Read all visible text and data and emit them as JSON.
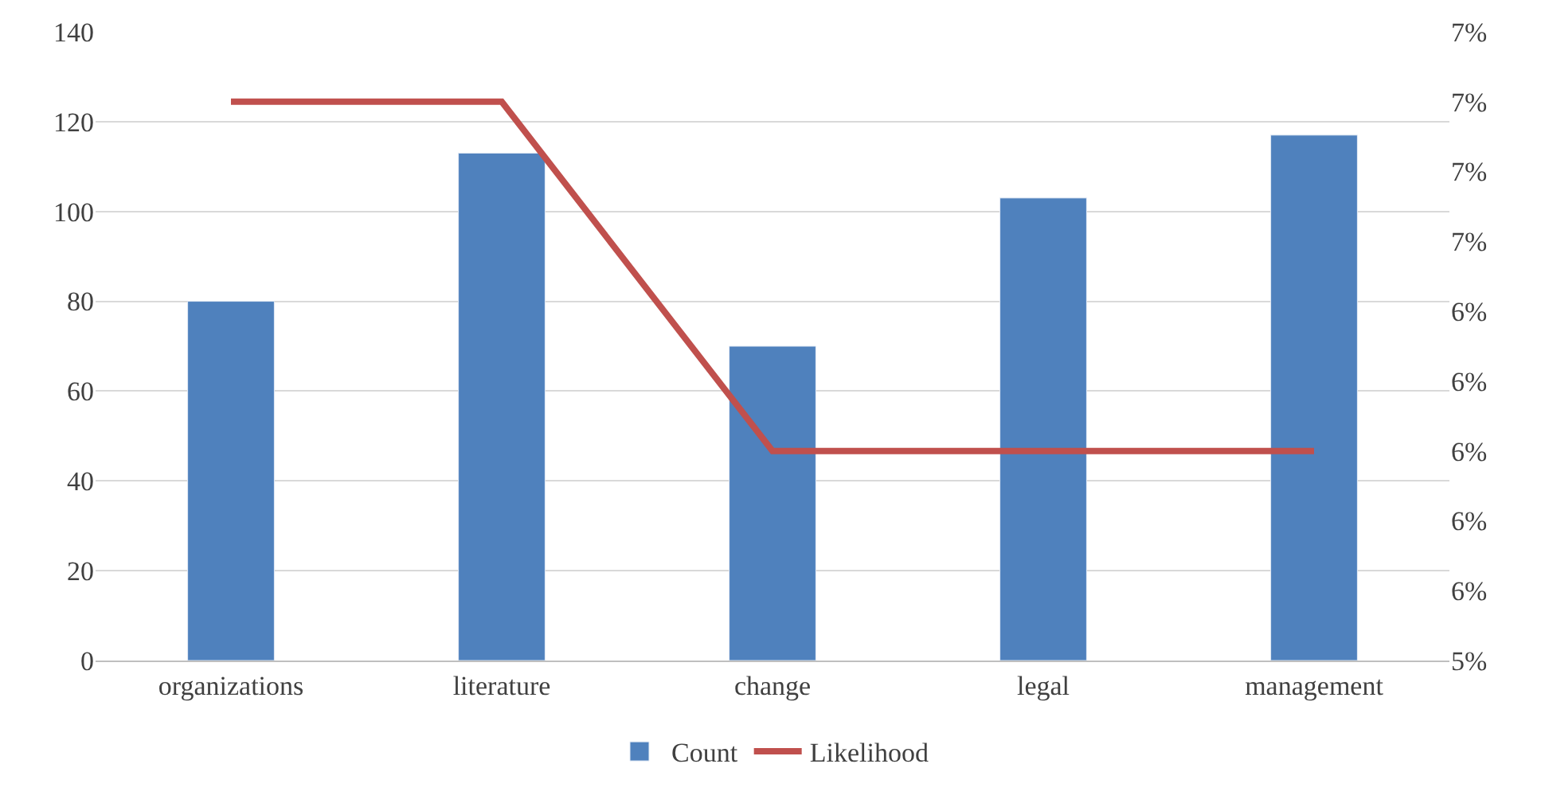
{
  "chart_data": {
    "type": "bar",
    "categories": [
      "organizations",
      "literature",
      "change",
      "legal",
      "management"
    ],
    "series": [
      {
        "name": "Count",
        "color": "#4f81bd",
        "values": [
          80,
          113,
          70,
          103,
          117
        ]
      },
      {
        "name": "Likelihood",
        "type": "line",
        "axis": "y2",
        "color": "#c0504d",
        "values": [
          7.0,
          7.0,
          6.0,
          6.0,
          6.0
        ]
      }
    ],
    "ylim": [
      0,
      140
    ],
    "yticks": [
      0,
      20,
      40,
      60,
      80,
      100,
      120,
      140
    ],
    "y2lim": [
      5.4,
      7.2
    ],
    "y2ticks": [
      {
        "value": 5.4,
        "label": "5%"
      },
      {
        "value": 5.6,
        "label": "6%"
      },
      {
        "value": 5.8,
        "label": "6%"
      },
      {
        "value": 6.0,
        "label": "6%"
      },
      {
        "value": 6.2,
        "label": "6%"
      },
      {
        "value": 6.4,
        "label": "6%"
      },
      {
        "value": 6.6,
        "label": "7%"
      },
      {
        "value": 6.8,
        "label": "7%"
      },
      {
        "value": 7.0,
        "label": "7%"
      },
      {
        "value": 7.2,
        "label": "7%"
      }
    ],
    "grid": "y",
    "legend": "bottom",
    "marker": "none",
    "line_style": "solid"
  }
}
